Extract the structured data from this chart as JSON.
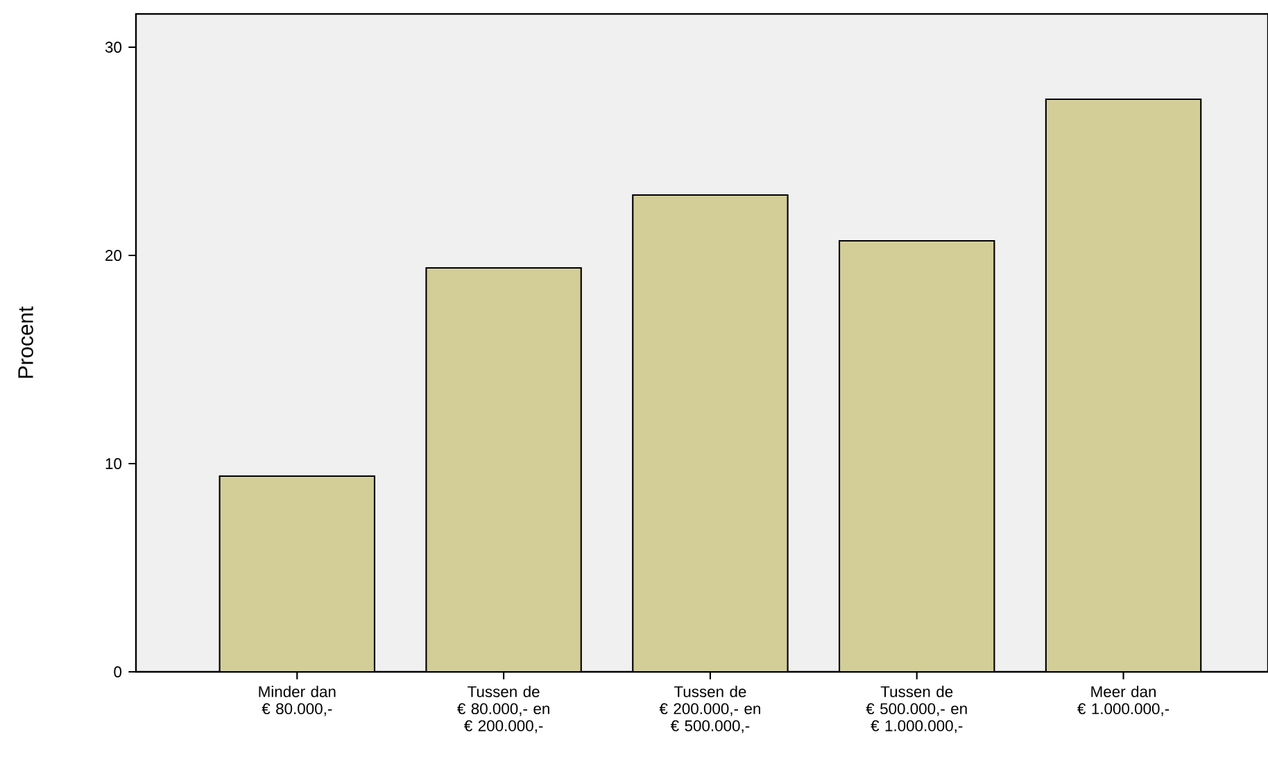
{
  "chart_data": {
    "type": "bar",
    "ylabel": "Procent",
    "categories": [
      "Minder dan € 80.000,-",
      "Tussen de € 80.000,- en € 200.000,-",
      "Tussen de € 200.000,- en € 500.000,-",
      "Tussen de € 500.000,- en € 1.000.000,-",
      "Meer dan € 1.000.000,-"
    ],
    "values": [
      9.4,
      19.4,
      22.9,
      20.7,
      27.5
    ],
    "color": "#d3cd98",
    "ylim": [
      0,
      31.6
    ],
    "yticks": [
      0,
      10,
      20,
      30
    ],
    "grid": false
  }
}
